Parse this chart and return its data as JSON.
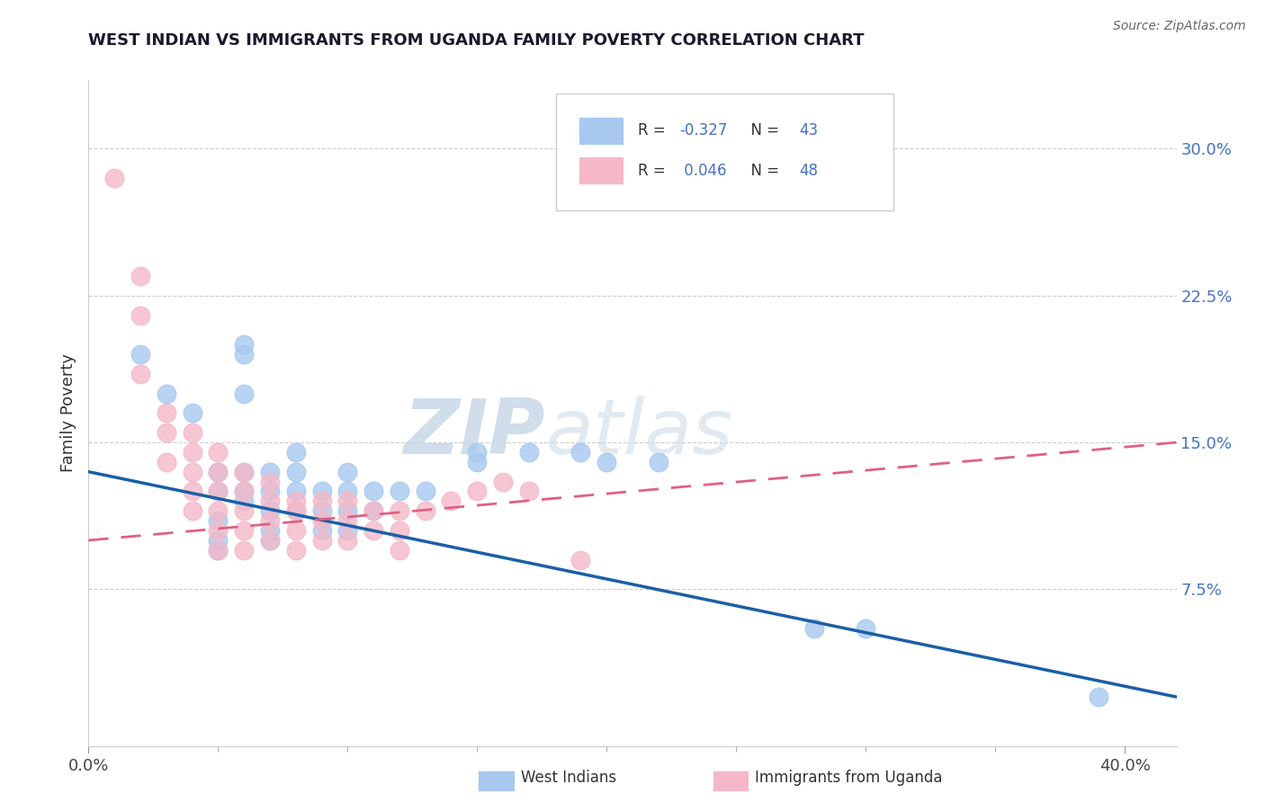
{
  "title": "WEST INDIAN VS IMMIGRANTS FROM UGANDA FAMILY POVERTY CORRELATION CHART",
  "source": "Source: ZipAtlas.com",
  "ylabel": "Family Poverty",
  "yticks": [
    "7.5%",
    "15.0%",
    "22.5%",
    "30.0%"
  ],
  "ytick_vals": [
    0.075,
    0.15,
    0.225,
    0.3
  ],
  "xlim": [
    0.0,
    0.42
  ],
  "ylim": [
    -0.005,
    0.335
  ],
  "blue_R": -0.327,
  "blue_N": 43,
  "pink_R": 0.046,
  "pink_N": 48,
  "blue_color": "#A8C8F0",
  "pink_color": "#F5B8C8",
  "blue_line_color": "#1a5fa8",
  "pink_line_color": "#e06080",
  "watermark_zip": "ZIP",
  "watermark_atlas": "atlas",
  "legend_label_blue": "West Indians",
  "legend_label_pink": "Immigrants from Uganda",
  "blue_scatter_x": [
    0.02,
    0.03,
    0.04,
    0.05,
    0.05,
    0.05,
    0.05,
    0.05,
    0.06,
    0.06,
    0.06,
    0.06,
    0.06,
    0.06,
    0.07,
    0.07,
    0.07,
    0.07,
    0.07,
    0.08,
    0.08,
    0.08,
    0.08,
    0.09,
    0.09,
    0.09,
    0.1,
    0.1,
    0.1,
    0.1,
    0.11,
    0.11,
    0.12,
    0.13,
    0.15,
    0.15,
    0.17,
    0.19,
    0.2,
    0.22,
    0.28,
    0.3,
    0.39
  ],
  "blue_scatter_y": [
    0.195,
    0.175,
    0.165,
    0.135,
    0.125,
    0.11,
    0.1,
    0.095,
    0.2,
    0.195,
    0.175,
    0.135,
    0.125,
    0.12,
    0.135,
    0.125,
    0.115,
    0.105,
    0.1,
    0.145,
    0.135,
    0.125,
    0.115,
    0.125,
    0.115,
    0.105,
    0.135,
    0.125,
    0.115,
    0.105,
    0.125,
    0.115,
    0.125,
    0.125,
    0.145,
    0.14,
    0.145,
    0.145,
    0.14,
    0.14,
    0.055,
    0.055,
    0.02
  ],
  "pink_scatter_x": [
    0.01,
    0.02,
    0.02,
    0.02,
    0.03,
    0.03,
    0.03,
    0.04,
    0.04,
    0.04,
    0.04,
    0.04,
    0.05,
    0.05,
    0.05,
    0.05,
    0.05,
    0.05,
    0.06,
    0.06,
    0.06,
    0.06,
    0.06,
    0.07,
    0.07,
    0.07,
    0.07,
    0.08,
    0.08,
    0.08,
    0.08,
    0.09,
    0.09,
    0.09,
    0.1,
    0.1,
    0.1,
    0.11,
    0.11,
    0.12,
    0.12,
    0.12,
    0.13,
    0.14,
    0.15,
    0.16,
    0.17,
    0.19
  ],
  "pink_scatter_y": [
    0.285,
    0.235,
    0.215,
    0.185,
    0.165,
    0.155,
    0.14,
    0.155,
    0.145,
    0.135,
    0.125,
    0.115,
    0.145,
    0.135,
    0.125,
    0.115,
    0.105,
    0.095,
    0.135,
    0.125,
    0.115,
    0.105,
    0.095,
    0.13,
    0.12,
    0.11,
    0.1,
    0.12,
    0.115,
    0.105,
    0.095,
    0.12,
    0.11,
    0.1,
    0.12,
    0.11,
    0.1,
    0.115,
    0.105,
    0.115,
    0.105,
    0.095,
    0.115,
    0.12,
    0.125,
    0.13,
    0.125,
    0.09
  ]
}
